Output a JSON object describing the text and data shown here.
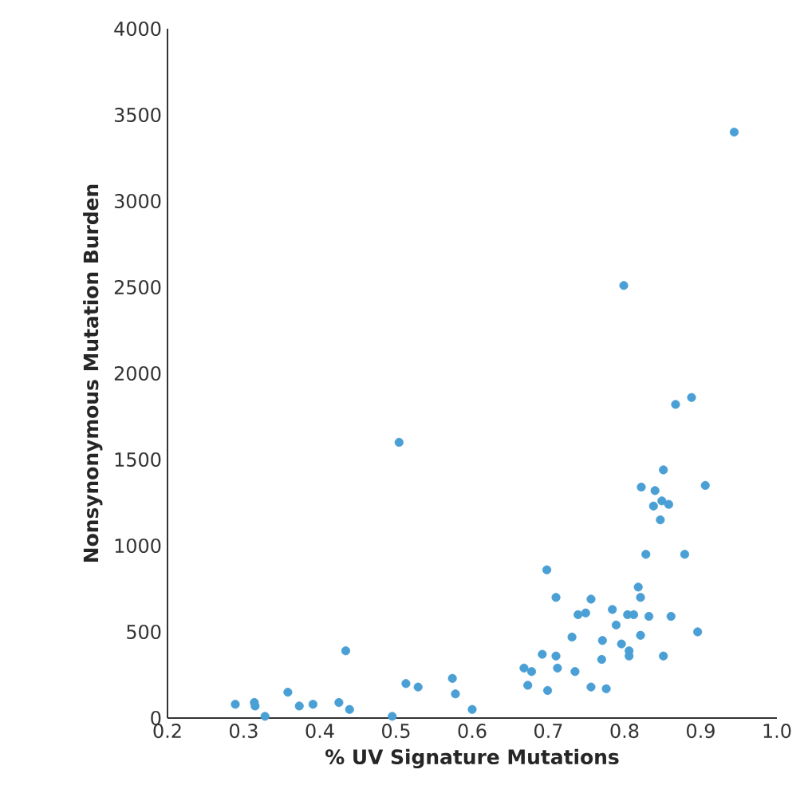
{
  "chart_data": {
    "type": "scatter",
    "xlabel": "% UV Signature Mutations",
    "ylabel": "Nonsynonymous Mutation Burden",
    "x": [
      0.289,
      0.314,
      0.315,
      0.328,
      0.358,
      0.373,
      0.391,
      0.425,
      0.434,
      0.439,
      0.495,
      0.504,
      0.513,
      0.529,
      0.574,
      0.578,
      0.6,
      0.888,
      0.867,
      0.851,
      0.906,
      0.822,
      0.84,
      0.849,
      0.858,
      0.838,
      0.847,
      0.828,
      0.879,
      0.698,
      0.71,
      0.756,
      0.818,
      0.821,
      0.739,
      0.749,
      0.784,
      0.804,
      0.812,
      0.832,
      0.861,
      0.789,
      0.731,
      0.771,
      0.821,
      0.896,
      0.796,
      0.806,
      0.806,
      0.692,
      0.71,
      0.77,
      0.851,
      0.668,
      0.678,
      0.712,
      0.735,
      0.673,
      0.699,
      0.756,
      0.776,
      0.799,
      0.944
    ],
    "values": [
      80,
      90,
      70,
      10,
      150,
      70,
      80,
      90,
      390,
      50,
      10,
      1600,
      200,
      180,
      230,
      140,
      50,
      1860,
      1820,
      1440,
      1350,
      1340,
      1320,
      1260,
      1240,
      1230,
      1150,
      950,
      950,
      860,
      700,
      690,
      760,
      700,
      600,
      610,
      630,
      600,
      600,
      590,
      590,
      540,
      470,
      450,
      480,
      500,
      430,
      390,
      360,
      370,
      360,
      340,
      360,
      290,
      270,
      290,
      270,
      190,
      160,
      180,
      170,
      2510,
      3400
    ],
    "color": "#4a9fd5",
    "marker": "circle",
    "grid": false,
    "xlim": [
      0.2,
      1.0
    ],
    "ylim": [
      0,
      4000
    ],
    "xticks": [
      0.2,
      0.3,
      0.4,
      0.5,
      0.6,
      0.7,
      0.8,
      0.9,
      {
        "value": 1.0,
        "label": "1.0"
      }
    ],
    "yticks": [
      0,
      500,
      1000,
      1500,
      2000,
      2500,
      3000,
      3500,
      4000
    ]
  }
}
